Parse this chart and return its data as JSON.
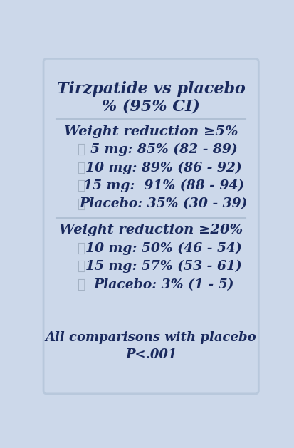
{
  "title_line1": "Tirzpatide vs placebo",
  "title_line2": "% (95% CI)",
  "section1_header": "Weight reduction ≥5%",
  "section1_items": [
    "5 mg: 85% (82 - 89)",
    "10 mg: 89% (86 - 92)",
    "15 mg:  91% (88 - 94)",
    "Placebo: 35% (30 - 39)"
  ],
  "section2_header": "Weight reduction ≥20%",
  "section2_items": [
    "10 mg: 50% (46 - 54)",
    "15 mg: 57% (53 - 61)",
    "Placebo: 3% (1 - 5)"
  ],
  "footer_line1": "All comparisons with placebo",
  "footer_line2": "P<.001",
  "bg_color": "#ccd8ea",
  "text_color": "#1a2a5e",
  "check_color": "#a0aec0",
  "divider_color": "#b0c0d4",
  "title_fontsize": 16,
  "header_fontsize": 14,
  "item_fontsize": 13.5,
  "footer_fontsize": 13
}
